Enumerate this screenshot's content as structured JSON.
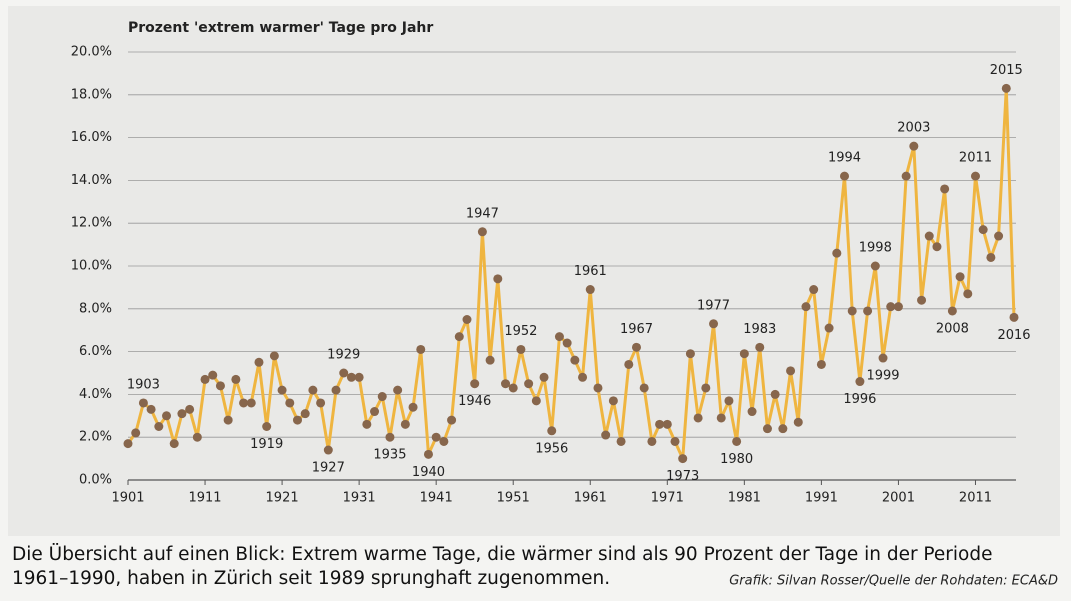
{
  "chart_data": {
    "type": "line",
    "title": "Prozent 'extrem warmer' Tage pro Jahr",
    "x": [
      1901,
      1902,
      1903,
      1904,
      1905,
      1906,
      1907,
      1908,
      1909,
      1910,
      1911,
      1912,
      1913,
      1914,
      1915,
      1916,
      1917,
      1918,
      1919,
      1920,
      1921,
      1922,
      1923,
      1924,
      1925,
      1926,
      1927,
      1928,
      1929,
      1930,
      1931,
      1932,
      1933,
      1934,
      1935,
      1936,
      1937,
      1938,
      1939,
      1940,
      1941,
      1942,
      1943,
      1944,
      1945,
      1946,
      1947,
      1948,
      1949,
      1950,
      1951,
      1952,
      1953,
      1954,
      1955,
      1956,
      1957,
      1958,
      1959,
      1960,
      1961,
      1962,
      1963,
      1964,
      1965,
      1966,
      1967,
      1968,
      1969,
      1970,
      1971,
      1972,
      1973,
      1974,
      1975,
      1976,
      1977,
      1978,
      1979,
      1980,
      1981,
      1982,
      1983,
      1984,
      1985,
      1986,
      1987,
      1988,
      1989,
      1990,
      1991,
      1992,
      1993,
      1994,
      1995,
      1996,
      1997,
      1998,
      1999,
      2000,
      2001,
      2002,
      2003,
      2004,
      2005,
      2006,
      2007,
      2008,
      2009,
      2010,
      2011,
      2012,
      2013,
      2014,
      2015,
      2016
    ],
    "series": [
      {
        "color": "#efb540",
        "marker_color": "#87664c",
        "values": [
          1.7,
          2.2,
          3.6,
          3.3,
          2.5,
          3.0,
          1.7,
          3.1,
          3.3,
          2.0,
          4.7,
          4.9,
          4.4,
          2.8,
          4.7,
          3.6,
          3.6,
          5.5,
          2.5,
          5.8,
          4.2,
          3.6,
          2.8,
          3.1,
          4.2,
          3.6,
          1.4,
          4.2,
          5.0,
          4.8,
          4.8,
          2.6,
          3.2,
          3.9,
          2.0,
          4.2,
          2.6,
          3.4,
          6.1,
          1.2,
          2.0,
          1.8,
          2.8,
          6.7,
          7.5,
          4.5,
          11.6,
          5.6,
          9.4,
          4.5,
          4.3,
          6.1,
          4.5,
          3.7,
          4.8,
          2.3,
          6.7,
          6.4,
          5.6,
          4.8,
          8.9,
          4.3,
          2.1,
          3.7,
          1.8,
          5.4,
          6.2,
          4.3,
          1.8,
          2.6,
          2.6,
          1.8,
          1.0,
          5.9,
          2.9,
          4.3,
          7.3,
          2.9,
          3.7,
          1.8,
          5.9,
          3.2,
          6.2,
          2.4,
          4.0,
          2.4,
          5.1,
          2.7,
          8.1,
          8.9,
          5.4,
          7.1,
          10.6,
          14.2,
          7.9,
          4.6,
          7.9,
          10.0,
          5.7,
          8.1,
          8.1,
          14.2,
          15.6,
          8.4,
          11.4,
          10.9,
          13.6,
          7.9,
          9.5,
          8.7,
          14.2,
          11.7,
          10.4,
          11.4,
          18.3,
          7.6
        ]
      }
    ],
    "annotations": [
      1903,
      1919,
      1927,
      1929,
      1935,
      1940,
      1946,
      1947,
      1952,
      1956,
      1961,
      1967,
      1973,
      1977,
      1980,
      1983,
      1994,
      1996,
      1998,
      1999,
      2003,
      2008,
      2011,
      2015,
      2016
    ],
    "xlim": [
      1901,
      2016
    ],
    "xticks": [
      1901,
      1911,
      1921,
      1931,
      1941,
      1951,
      1961,
      1971,
      1981,
      1991,
      2001,
      2011
    ],
    "ylim": [
      0,
      20
    ],
    "yticks": [
      {
        "value": 0,
        "label": "0.0%"
      },
      {
        "value": 2,
        "label": "2.0%"
      },
      {
        "value": 4,
        "label": "4.0%"
      },
      {
        "value": 6,
        "label": "6.0%"
      },
      {
        "value": 8,
        "label": "8.0%"
      },
      {
        "value": 10,
        "label": "10.0%"
      },
      {
        "value": 12,
        "label": "12.0%"
      },
      {
        "value": 14,
        "label": "14.0%"
      },
      {
        "value": 16,
        "label": "16.0%"
      },
      {
        "value": 18,
        "label": "18.0%"
      },
      {
        "value": 20,
        "label": "20.0%"
      }
    ],
    "grid": true,
    "caption": [
      "Die Übersicht auf einen Blick: Extrem warme Tage, die wärmer sind als 90 Prozent der Tage in der Periode",
      "1961–1990, haben in Zürich seit 1989 sprunghaft zugenommen."
    ],
    "source": "Grafik: Silvan Rosser/Quelle der Rohdaten: ECA&D"
  }
}
